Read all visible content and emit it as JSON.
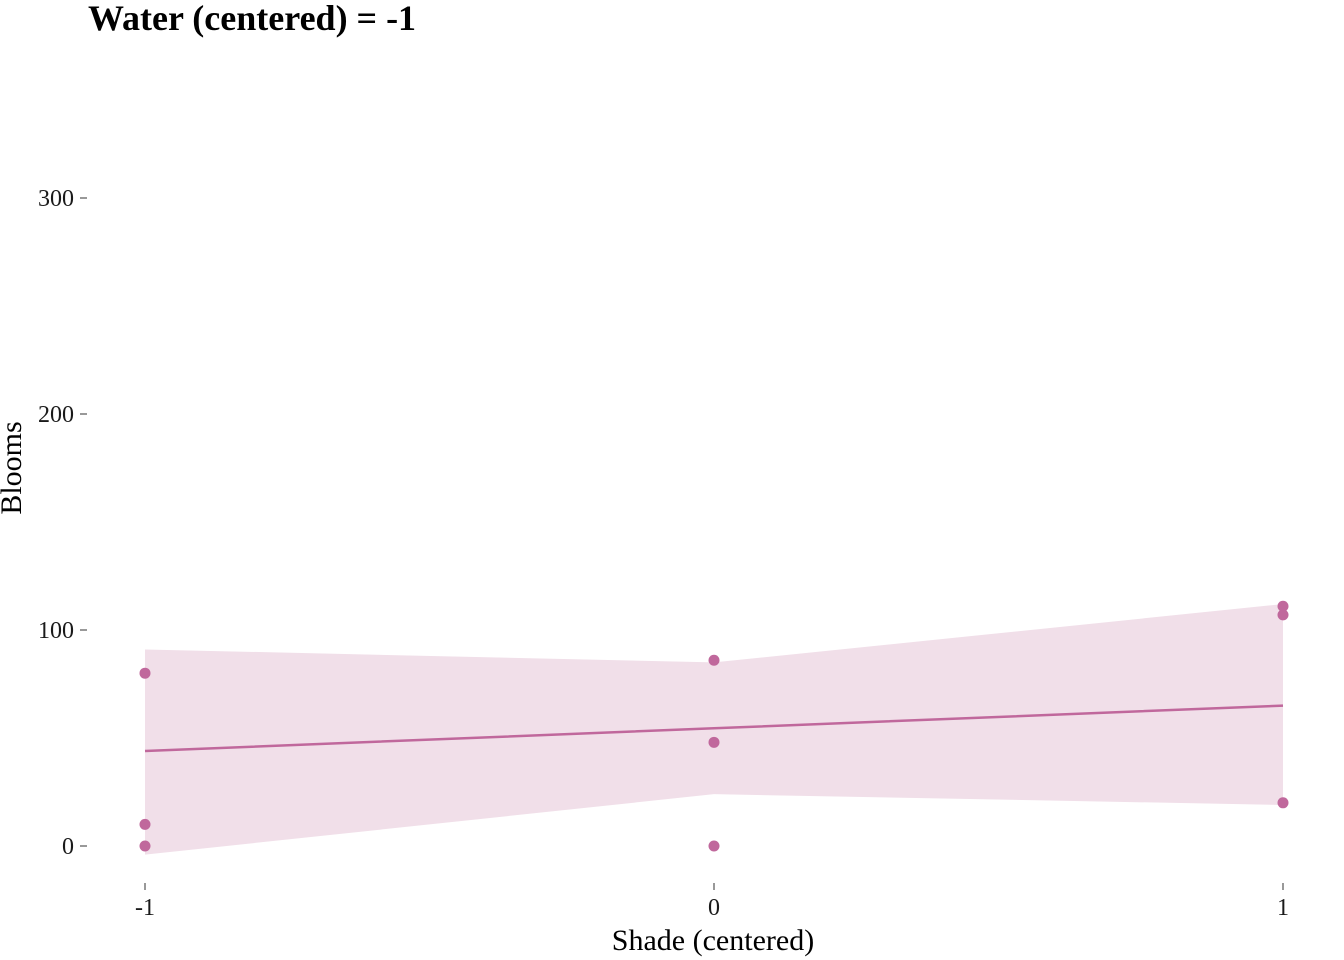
{
  "chart_data": {
    "type": "scatter",
    "title": "Water (centered) = -1",
    "xlabel": "Shade (centered)",
    "ylabel": "Blooms",
    "xlim": [
      -1.04,
      1.04
    ],
    "ylim": [
      -20,
      370
    ],
    "x_ticks": [
      -1,
      0,
      1
    ],
    "x_tick_labels": [
      "-1",
      "0",
      "1"
    ],
    "y_ticks": [
      0,
      100,
      200,
      300
    ],
    "y_tick_labels": [
      "0",
      "100",
      "200",
      "300"
    ],
    "grid": false,
    "legend": "none",
    "color": "#c0689c",
    "band_color": "#f1dfe9",
    "points": [
      {
        "x": -1,
        "y": 80
      },
      {
        "x": -1,
        "y": 10
      },
      {
        "x": -1,
        "y": 0
      },
      {
        "x": 0,
        "y": 86
      },
      {
        "x": 0,
        "y": 48
      },
      {
        "x": 0,
        "y": 0
      },
      {
        "x": 1,
        "y": 111
      },
      {
        "x": 1,
        "y": 107
      },
      {
        "x": 1,
        "y": 20
      }
    ],
    "fit_line": {
      "x": [
        -1,
        0,
        1
      ],
      "y": [
        44,
        54.5,
        65
      ]
    },
    "interval": {
      "x": [
        -1,
        0,
        1
      ],
      "upper": [
        91,
        85,
        112
      ],
      "lower": [
        -4,
        24,
        19
      ]
    }
  }
}
